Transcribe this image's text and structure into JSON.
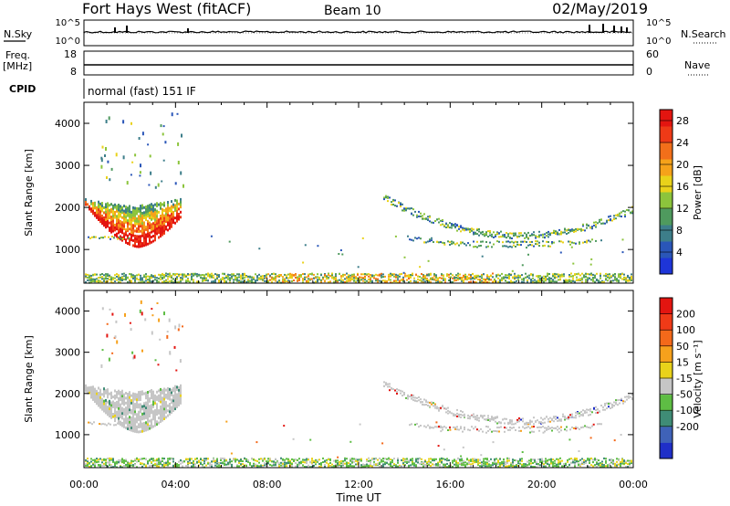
{
  "header": {
    "station": "Fort Hays West (fitACF)",
    "beam": "Beam 10",
    "date": "02/May/2019"
  },
  "noise_panel": {
    "left_label": "N.Sky",
    "right_label": "N.Search",
    "left_ticks": [
      "10^5",
      "10^0"
    ],
    "right_ticks": [
      "10^5",
      "10^0"
    ]
  },
  "freq_panel": {
    "left_label_line1": "Freq.",
    "left_label_line2": "[MHz]",
    "right_label": "Nave",
    "left_ticks": [
      "18",
      "8"
    ],
    "right_ticks": [
      "60",
      "0"
    ]
  },
  "cpid": {
    "label": "CPID",
    "value": "normal (fast) 151 IF"
  },
  "x_axis": {
    "label": "Time UT",
    "ticks": [
      "00:00",
      "04:00",
      "08:00",
      "12:00",
      "16:00",
      "20:00",
      "00:00"
    ]
  },
  "colors": {
    "power": [
      "#1e35d8",
      "#2a56b8",
      "#3d7e8a",
      "#4f9a5e",
      "#8cc43c",
      "#e9d21a",
      "#f5a21a",
      "#f26f1a",
      "#ee3a17",
      "#e31510"
    ],
    "velocity": [
      "#1f2fc8",
      "#3f62b8",
      "#3f8c76",
      "#5ebd44",
      "#c6c6c6",
      "#e9d21a",
      "#f6a11c",
      "#f4691a",
      "#ef3a17",
      "#e31510"
    ]
  },
  "chart_data": [
    {
      "type": "heatmap",
      "title": "",
      "xlabel": "",
      "ylabel": "Slant Range [km]",
      "xlim_hours": [
        0,
        24
      ],
      "ylim_km": [
        200,
        4500
      ],
      "yticks": [
        "1000",
        "2000",
        "3000",
        "4000"
      ],
      "colorbar": {
        "label": "Power [dB]",
        "ticks": [
          "4",
          "8",
          "12",
          "16",
          "20",
          "24",
          "28"
        ],
        "range": [
          0,
          30
        ]
      },
      "regions": [
        {
          "name": "bowl",
          "x_hours": [
            0.0,
            4.0
          ],
          "range_km": [
            1050,
            2400
          ],
          "value_db": [
            10,
            30
          ]
        },
        {
          "name": "near-ground",
          "x_hours": [
            0.0,
            24.0
          ],
          "range_km": [
            200,
            450
          ],
          "value_db": [
            4,
            24
          ]
        },
        {
          "name": "arc",
          "x_hours": [
            13.0,
            24.0
          ],
          "range_km": [
            1050,
            2300
          ],
          "value_db": [
            4,
            20
          ]
        },
        {
          "name": "scattered",
          "x_hours": [
            1.0,
            5.0
          ],
          "range_km": [
            2500,
            4300
          ],
          "value_db": [
            4,
            16
          ]
        }
      ]
    },
    {
      "type": "heatmap",
      "title": "",
      "xlabel": "Time UT",
      "ylabel": "Slant Range [km]",
      "xlim_hours": [
        0,
        24
      ],
      "ylim_km": [
        200,
        4500
      ],
      "yticks": [
        "1000",
        "2000",
        "3000",
        "4000"
      ],
      "colorbar": {
        "label": "Velocity [m s⁻¹]",
        "ticks": [
          "200",
          "100",
          "50",
          "15",
          "-15",
          "-50",
          "-100",
          "-200"
        ],
        "range": [
          -250,
          250
        ]
      },
      "regions": [
        {
          "name": "bowl",
          "x_hours": [
            0.0,
            4.0
          ],
          "range_km": [
            1050,
            2400
          ],
          "value_ms": [
            -15,
            15
          ]
        },
        {
          "name": "near-ground",
          "x_hours": [
            0.0,
            24.0
          ],
          "range_km": [
            200,
            450
          ],
          "value_ms": [
            15,
            100
          ]
        },
        {
          "name": "arc",
          "x_hours": [
            13.0,
            24.0
          ],
          "range_km": [
            1050,
            2300
          ],
          "value_ms": [
            -15,
            15
          ]
        },
        {
          "name": "scattered",
          "x_hours": [
            1.0,
            5.0
          ],
          "range_km": [
            2500,
            4300
          ],
          "value_ms": [
            -100,
            50
          ]
        }
      ]
    }
  ]
}
